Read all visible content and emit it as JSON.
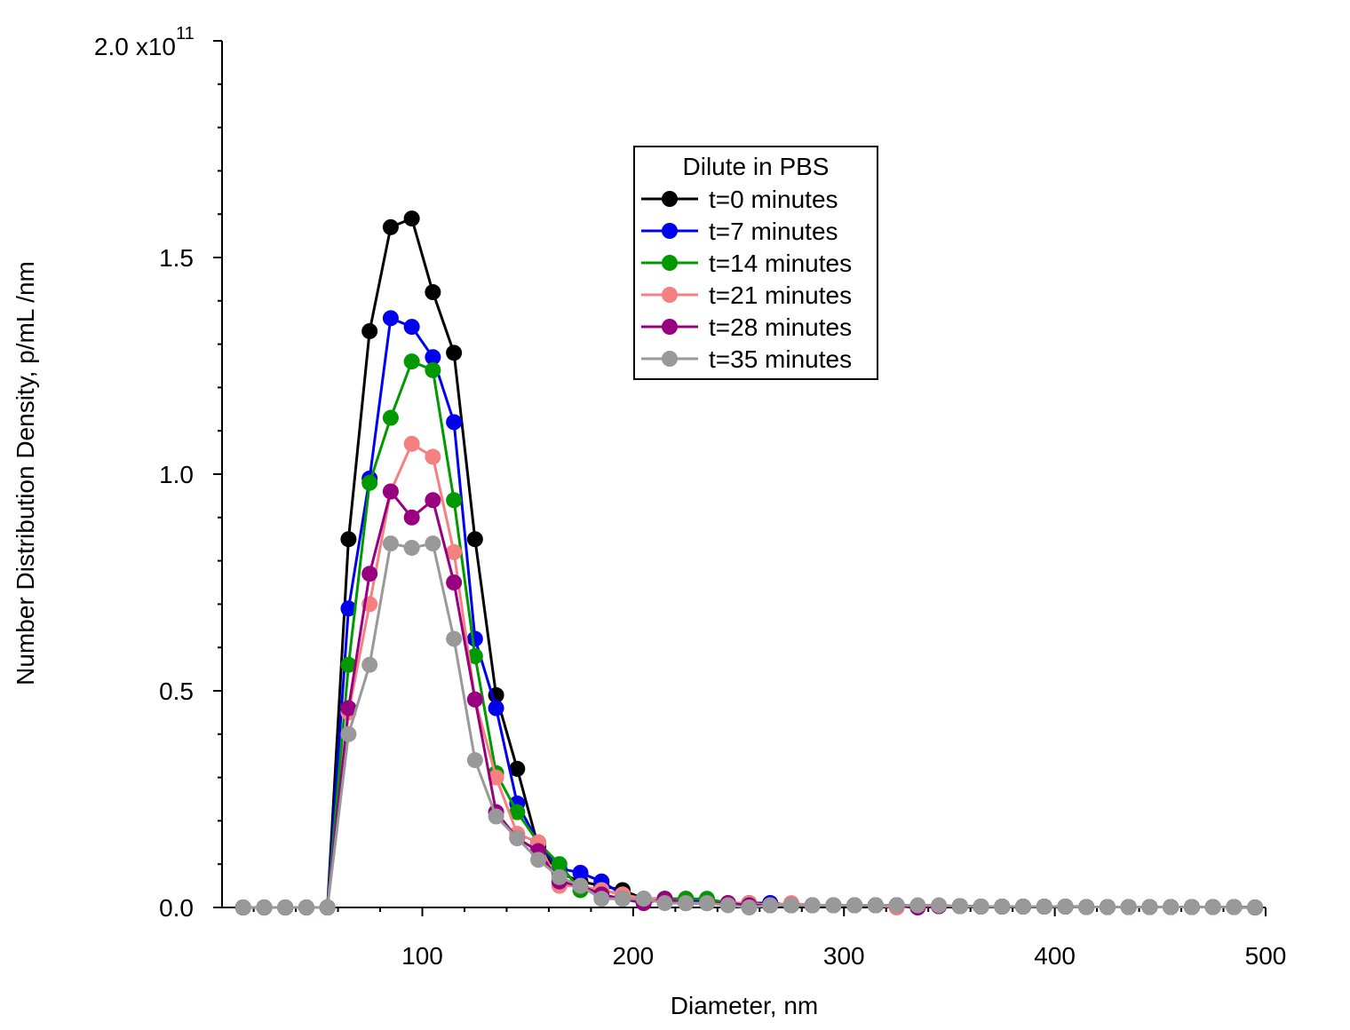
{
  "chart_data": {
    "type": "line",
    "xlabel": "Diameter, nm",
    "ylabel": "Number Distribution Density, p/mL /nm",
    "xlim": [
      5,
      500
    ],
    "ylim": [
      0,
      2.0
    ],
    "y_multiplier_label": "x10",
    "y_exponent": "11",
    "x_ticks": [
      "100",
      "200",
      "300",
      "400",
      "500"
    ],
    "y_ticks": [
      "0.0",
      "0.5",
      "1.0",
      "1.5",
      "2.0"
    ],
    "legend_title": "Dilute in PBS",
    "legend_position": "top-center",
    "x": [
      15,
      25,
      35,
      45,
      55,
      65,
      75,
      85,
      95,
      105,
      115,
      125,
      135,
      145,
      155,
      165,
      175,
      185,
      195,
      205,
      215,
      225,
      235,
      245,
      255,
      265,
      275,
      285,
      295,
      305,
      315,
      325,
      335,
      345,
      355,
      365,
      375,
      385,
      395,
      405,
      415,
      425,
      435,
      445,
      455,
      465,
      475,
      485,
      495
    ],
    "series": [
      {
        "name": "t=0 minutes",
        "color": "#000000",
        "values": [
          0,
          0,
          0,
          0,
          0,
          0.85,
          1.33,
          1.57,
          1.59,
          1.42,
          1.28,
          0.85,
          0.49,
          0.32,
          0.14,
          0.08,
          0.06,
          0.05,
          0.04,
          0.02,
          0.02,
          0.01,
          0.01,
          0.01,
          0.01,
          0.01,
          0.005,
          0.005,
          0.005,
          0.005,
          0.005,
          0.005,
          0.003,
          0.003,
          0.003,
          0.002,
          0.002,
          0.002,
          0.002,
          0.002,
          0.001,
          0.001,
          0.001,
          0.001,
          0.001,
          0.001,
          0.001,
          0.001,
          0
        ]
      },
      {
        "name": "t=7 minutes",
        "color": "#0000ee",
        "values": [
          0,
          0,
          0,
          0,
          0,
          0.69,
          0.99,
          1.36,
          1.34,
          1.27,
          1.12,
          0.62,
          0.46,
          0.24,
          0.15,
          0.09,
          0.08,
          0.06,
          0.03,
          0.02,
          0.02,
          0.02,
          0.01,
          0.01,
          0.01,
          0.01,
          0.005,
          0.005,
          0.005,
          0.005,
          0.005,
          0.005,
          0.003,
          0.003,
          0.003,
          0.002,
          0.002,
          0.002,
          0.002,
          0.002,
          0.001,
          0.001,
          0.001,
          0.001,
          0.001,
          0.001,
          0.001,
          0.001,
          0
        ]
      },
      {
        "name": "t=14 minutes",
        "color": "#009900",
        "values": [
          0,
          0,
          0,
          0,
          0,
          0.56,
          0.98,
          1.13,
          1.26,
          1.24,
          0.94,
          0.58,
          0.31,
          0.22,
          0.15,
          0.1,
          0.04,
          0.04,
          0.03,
          0.02,
          0.02,
          0.02,
          0.02,
          0.01,
          0.01,
          0.005,
          0.005,
          0.005,
          0.005,
          0.005,
          0.005,
          0.005,
          0.003,
          0.003,
          0.003,
          0.002,
          0.002,
          0.002,
          0.002,
          0.002,
          0.001,
          0.001,
          0.001,
          0.001,
          0.001,
          0.001,
          0.001,
          0.001,
          0
        ]
      },
      {
        "name": "t=21 minutes",
        "color": "#f48080",
        "values": [
          0,
          0,
          0,
          0,
          0,
          0.45,
          0.7,
          0.96,
          1.07,
          1.04,
          0.82,
          0.48,
          0.3,
          0.17,
          0.15,
          0.05,
          0.05,
          0.04,
          0.03,
          0.02,
          0.02,
          0.01,
          0.01,
          0.01,
          0.01,
          0.005,
          0.01,
          0.005,
          0.005,
          0.005,
          0.005,
          0.0,
          0.003,
          0.003,
          0.003,
          0.002,
          0.002,
          0.002,
          0.002,
          0.002,
          0.001,
          0.001,
          0.001,
          0.001,
          0.001,
          0.001,
          0.001,
          0.001,
          0
        ]
      },
      {
        "name": "t=28 minutes",
        "color": "#990080",
        "values": [
          0,
          0,
          0,
          0,
          0,
          0.46,
          0.77,
          0.96,
          0.9,
          0.94,
          0.75,
          0.48,
          0.22,
          0.16,
          0.13,
          0.06,
          0.05,
          0.03,
          0.02,
          0.01,
          0.02,
          0.01,
          0.01,
          0.01,
          0.005,
          0.005,
          0.005,
          0.005,
          0.005,
          0.005,
          0.005,
          0.005,
          0.0,
          0.003,
          0.003,
          0.002,
          0.002,
          0.002,
          0.002,
          0.002,
          0.001,
          0.001,
          0.001,
          0.001,
          0.001,
          0.001,
          0.001,
          0.001,
          0
        ]
      },
      {
        "name": "t=35 minutes",
        "color": "#999999",
        "values": [
          0,
          0,
          0,
          0,
          0,
          0.4,
          0.56,
          0.84,
          0.83,
          0.84,
          0.62,
          0.34,
          0.21,
          0.16,
          0.11,
          0.07,
          0.05,
          0.02,
          0.02,
          0.02,
          0.01,
          0.01,
          0.01,
          0.005,
          0.0,
          0.005,
          0.005,
          0.005,
          0.005,
          0.005,
          0.005,
          0.005,
          0.005,
          0.005,
          0.003,
          0.002,
          0.002,
          0.002,
          0.002,
          0.002,
          0.001,
          0.001,
          0.001,
          0.001,
          0.001,
          0.001,
          0.001,
          0.001,
          0
        ]
      }
    ]
  }
}
